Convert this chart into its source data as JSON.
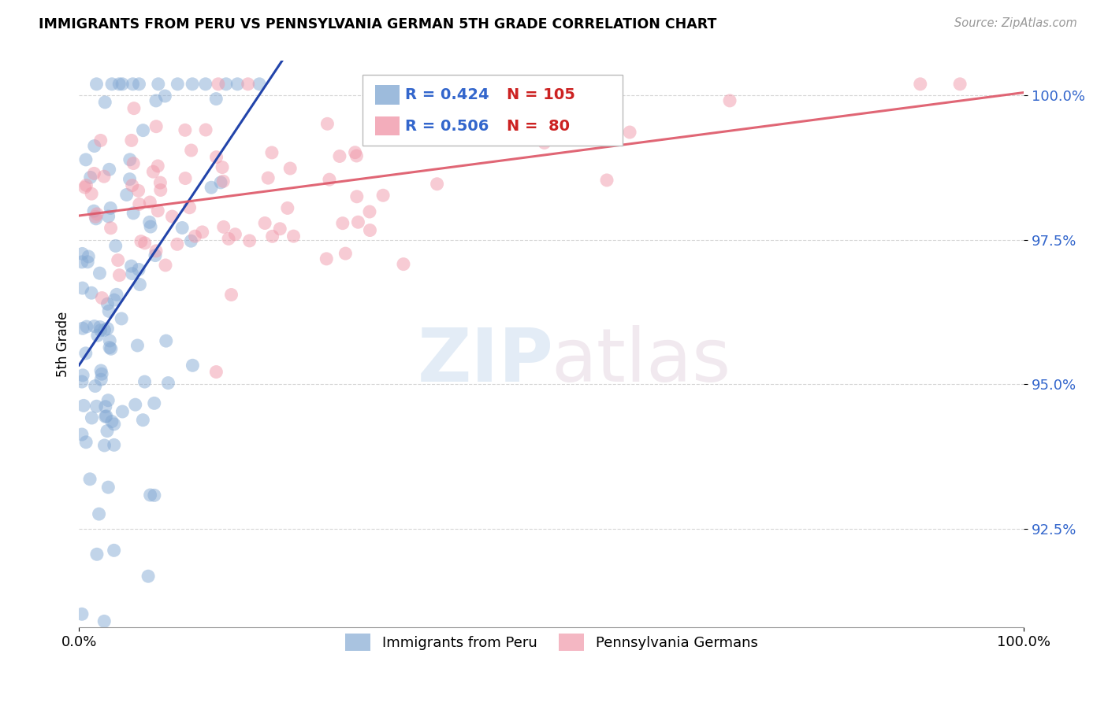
{
  "title": "IMMIGRANTS FROM PERU VS PENNSYLVANIA GERMAN 5TH GRADE CORRELATION CHART",
  "source": "Source: ZipAtlas.com",
  "ylabel": "5th Grade",
  "xlim": [
    0.0,
    1.0
  ],
  "ylim": [
    0.908,
    1.006
  ],
  "yticks": [
    0.925,
    0.95,
    0.975,
    1.0
  ],
  "ytick_labels": [
    "92.5%",
    "95.0%",
    "97.5%",
    "100.0%"
  ],
  "xtick_labels": [
    "0.0%",
    "100.0%"
  ],
  "blue_R": 0.424,
  "blue_N": 105,
  "pink_R": 0.506,
  "pink_N": 80,
  "blue_color": "#85aad4",
  "pink_color": "#f099aa",
  "blue_line_color": "#2244aa",
  "pink_line_color": "#dd5566",
  "legend_label_blue": "Immigrants from Peru",
  "legend_label_pink": "Pennsylvania Germans"
}
